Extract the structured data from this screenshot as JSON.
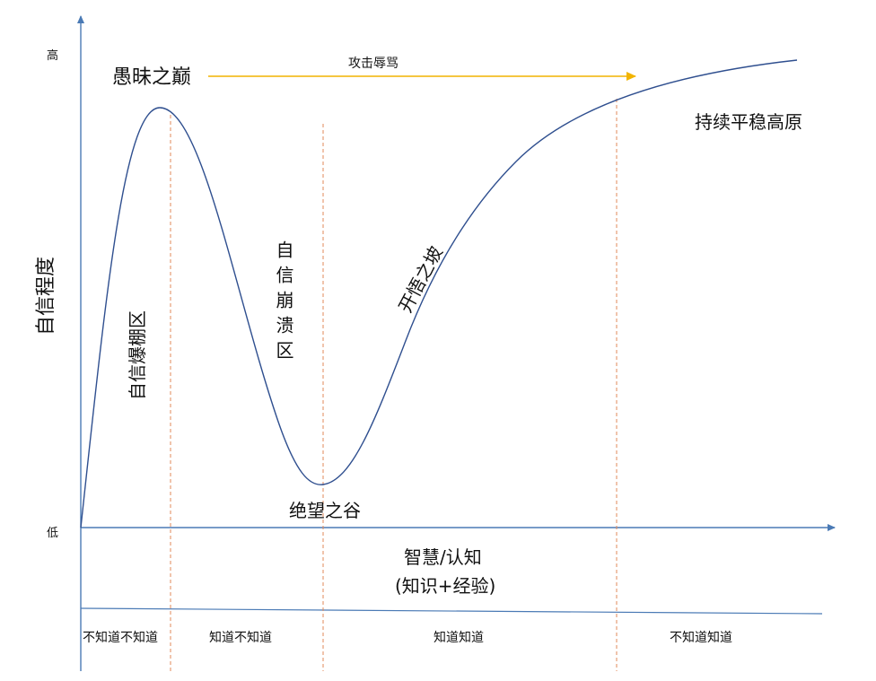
{
  "chart_data": {
    "type": "line",
    "title": "",
    "y_axis": {
      "label": "自信程度",
      "high": "高",
      "low": "低"
    },
    "x_axis": {
      "label_line1": "智慧/认知",
      "label_line2": "(知识+经验)"
    },
    "stages": [
      {
        "name": "愚昧之巅"
      },
      {
        "name": "绝望之谷"
      },
      {
        "name": "开悟之坡"
      },
      {
        "name": "持续平稳高原"
      }
    ],
    "regions": [
      {
        "name": "自信爆棚区"
      },
      {
        "name": "自信崩溃区"
      }
    ],
    "arrow_label": "攻击辱骂",
    "bottom_categories": [
      "不知道不知道",
      "知道不知道",
      "知道知道",
      "不知道知道"
    ],
    "colors": {
      "axis": "#4a7ab5",
      "curve": "#2f4f8f",
      "divider": "#e28a5a",
      "arrow": "#f2b400"
    }
  }
}
